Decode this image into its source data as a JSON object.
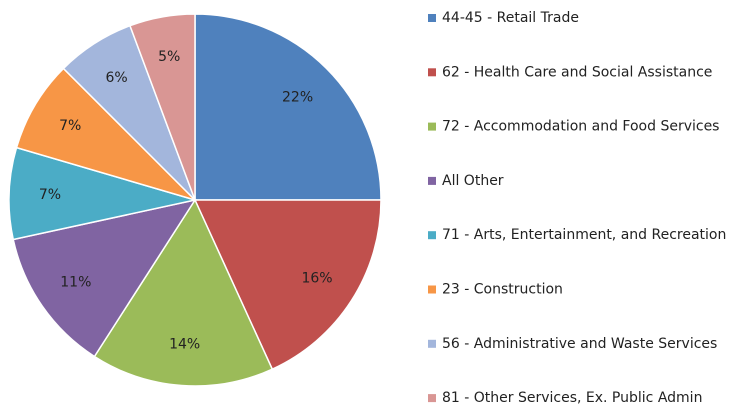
{
  "chart_data": {
    "type": "pie",
    "categories": [
      "44-45 - Retail Trade",
      "62 - Health Care and Social Assistance",
      "72 - Accommodation and Food Services",
      "All Other",
      "71 - Arts, Entertainment, and Recreation",
      "23 - Construction",
      "56 - Administrative and Waste Services",
      "81 - Other Services, Ex. Public Admin"
    ],
    "values": [
      22,
      16,
      14,
      11,
      7,
      7,
      6,
      5
    ],
    "value_labels": [
      "22%",
      "16%",
      "14%",
      "11%",
      "7%",
      "7%",
      "6%",
      "5%"
    ],
    "colors": [
      "#4f81bd",
      "#c0504d",
      "#9bbb59",
      "#8064a2",
      "#4bacc6",
      "#f79646",
      "#a3b6dc",
      "#d99694"
    ],
    "legend": "right"
  }
}
